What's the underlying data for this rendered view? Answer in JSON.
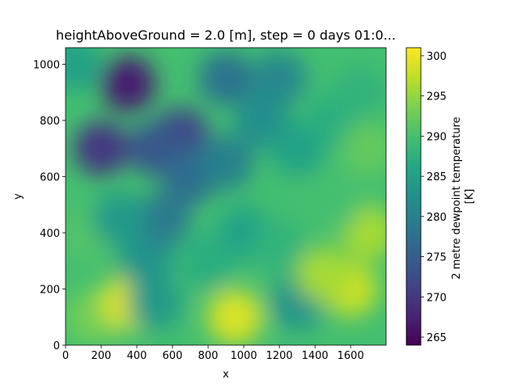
{
  "chart_data": {
    "type": "heatmap",
    "title": "heightAboveGround = 2.0 [m], step = 0 days 01:0...",
    "xlabel": "x",
    "ylabel": "y",
    "xlim": [
      0,
      1799
    ],
    "ylim": [
      0,
      1059
    ],
    "xticks": [
      0,
      200,
      400,
      600,
      800,
      1000,
      1200,
      1400,
      1600
    ],
    "yticks": [
      0,
      200,
      400,
      600,
      800,
      1000
    ],
    "colorbar": {
      "label": "2 metre dewpoint temperature\n[K]",
      "range": [
        264,
        301
      ],
      "ticks": [
        265,
        270,
        275,
        280,
        285,
        290,
        295,
        300
      ],
      "colormap": "viridis"
    },
    "regions_description_points": [
      {
        "x": 50,
        "y": 1000,
        "value": 285
      },
      {
        "x": 150,
        "y": 400,
        "value": 291
      },
      {
        "x": 150,
        "y": 100,
        "value": 293
      },
      {
        "x": 350,
        "y": 150,
        "value": 299
      },
      {
        "x": 500,
        "y": 150,
        "value": 284
      },
      {
        "x": 450,
        "y": 300,
        "value": 283
      },
      {
        "x": 550,
        "y": 450,
        "value": 279
      },
      {
        "x": 350,
        "y": 930,
        "value": 267
      },
      {
        "x": 200,
        "y": 700,
        "value": 270
      },
      {
        "x": 650,
        "y": 750,
        "value": 272
      },
      {
        "x": 500,
        "y": 700,
        "value": 274
      },
      {
        "x": 700,
        "y": 600,
        "value": 277
      },
      {
        "x": 900,
        "y": 950,
        "value": 278
      },
      {
        "x": 1200,
        "y": 950,
        "value": 281
      },
      {
        "x": 1100,
        "y": 800,
        "value": 282
      },
      {
        "x": 1300,
        "y": 700,
        "value": 285
      },
      {
        "x": 1500,
        "y": 800,
        "value": 287
      },
      {
        "x": 1650,
        "y": 900,
        "value": 288
      },
      {
        "x": 1700,
        "y": 700,
        "value": 292
      },
      {
        "x": 1700,
        "y": 400,
        "value": 296
      },
      {
        "x": 1600,
        "y": 200,
        "value": 298
      },
      {
        "x": 1000,
        "y": 400,
        "value": 285
      },
      {
        "x": 1200,
        "y": 350,
        "value": 288
      },
      {
        "x": 1300,
        "y": 150,
        "value": 283
      },
      {
        "x": 950,
        "y": 100,
        "value": 299
      },
      {
        "x": 800,
        "y": 300,
        "value": 287
      },
      {
        "x": 1450,
        "y": 250,
        "value": 296
      },
      {
        "x": 900,
        "y": 650,
        "value": 280
      },
      {
        "x": 1500,
        "y": 500,
        "value": 290
      },
      {
        "x": 300,
        "y": 450,
        "value": 284
      }
    ]
  }
}
